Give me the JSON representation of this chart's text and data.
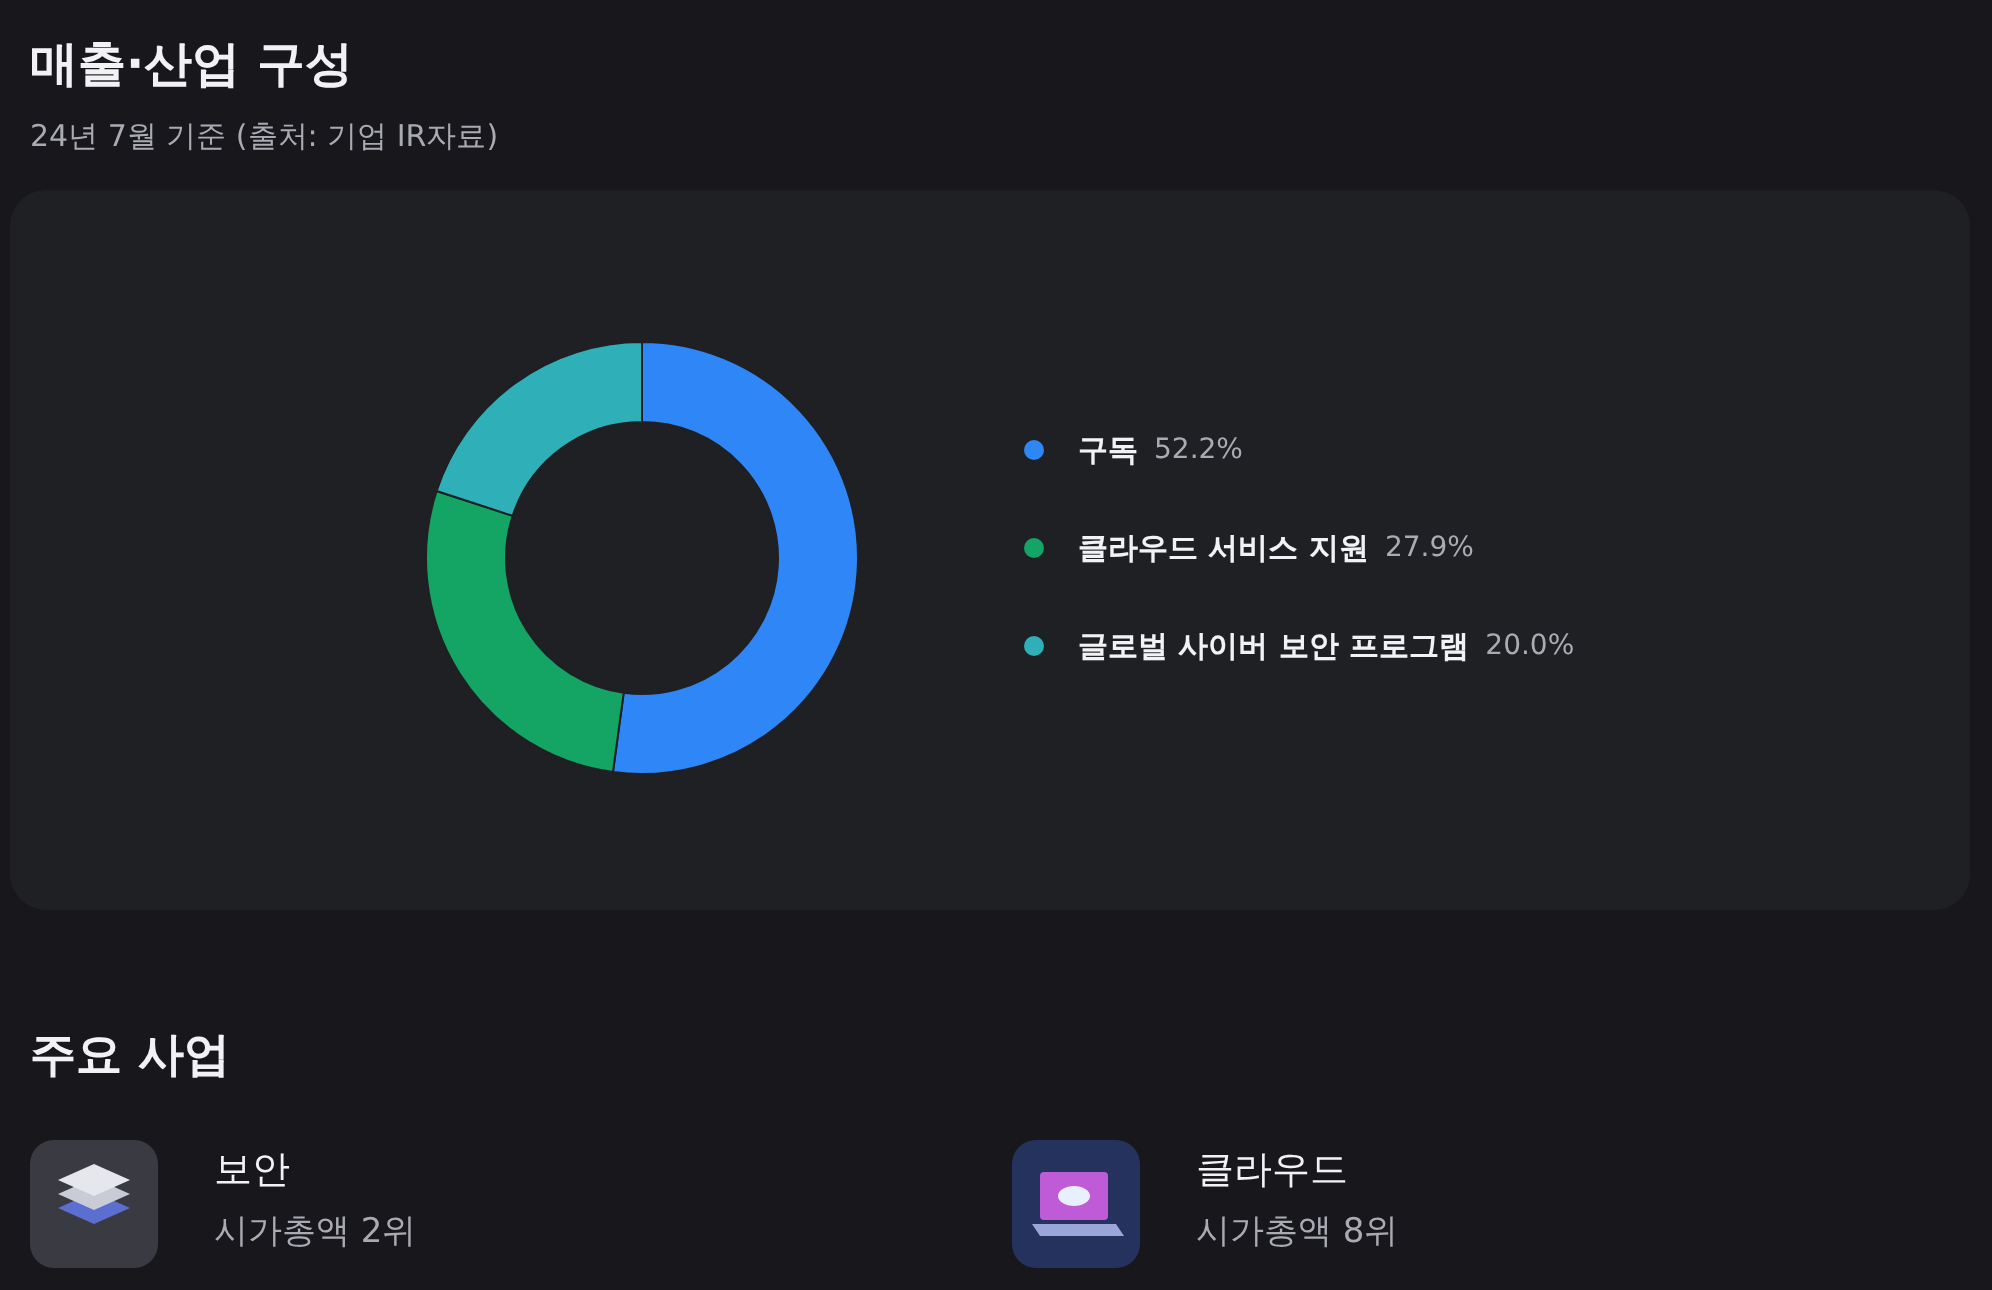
{
  "chart_data": {
    "type": "donut",
    "title": "매출·산업 구성",
    "subtitle": "24년 7월 기준 (출처: 기업 IR자료)",
    "categories": [
      "구독",
      "클라우드 서비스 지원",
      "글로벌 사이버 보안 프로그램"
    ],
    "values": [
      52.2,
      27.9,
      20.0
    ],
    "value_labels": [
      "52.2%",
      "27.9%",
      "20.0%"
    ],
    "colors": [
      "#2f86f6",
      "#14a463",
      "#2fb0b8"
    ],
    "legend": "right",
    "annotations": [
      "주요 사업",
      "보안",
      "시가총액 2위",
      "클라우드",
      "시가총액 8위"
    ]
  }
}
